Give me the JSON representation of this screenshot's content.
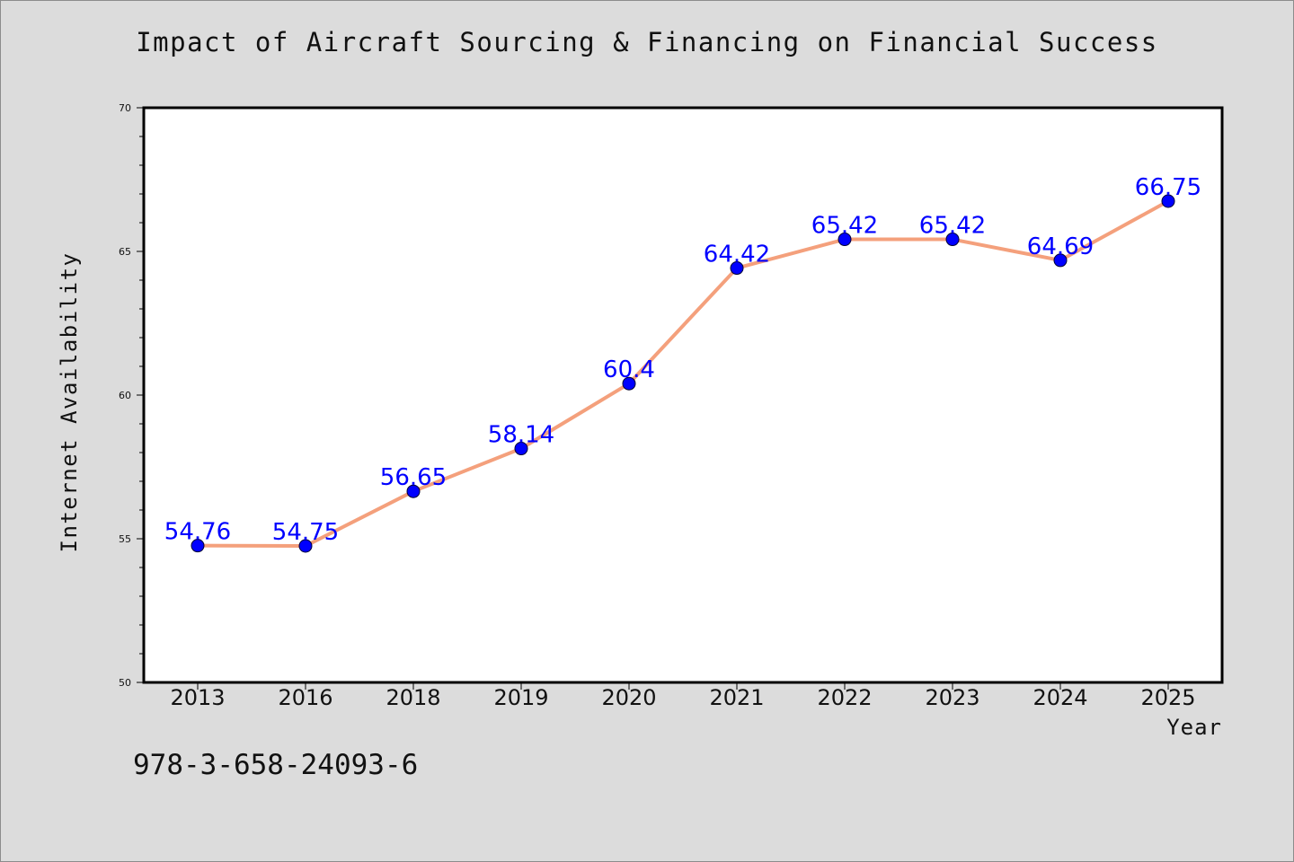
{
  "watermark": "978-3-658-24093-6",
  "colors": {
    "background": "#dcdcdc",
    "plot_background": "#ffffff",
    "line": "#f4a07c",
    "marker": "#0000ff",
    "data_label": "#0000ff"
  },
  "chart_data": {
    "type": "line",
    "title": "Impact of Aircraft Sourcing & Financing on Financial Success",
    "xlabel": "Year",
    "ylabel": "Internet Availability",
    "categories": [
      "2013",
      "2016",
      "2018",
      "2019",
      "2020",
      "2021",
      "2022",
      "2023",
      "2024",
      "2025"
    ],
    "series": [
      {
        "values": [
          54.76,
          54.75,
          56.65,
          58.14,
          60.4,
          64.42,
          65.42,
          65.42,
          64.69,
          66.75
        ],
        "labels": [
          "54.76",
          "54.75",
          "56.65",
          "58.14",
          "60.4",
          "64.42",
          "65.42",
          "65.42",
          "64.69",
          "66.75"
        ]
      }
    ],
    "ylim": [
      50,
      70
    ],
    "yticks": [
      50,
      55,
      60,
      65,
      70
    ],
    "grid": false,
    "legend": "none"
  }
}
